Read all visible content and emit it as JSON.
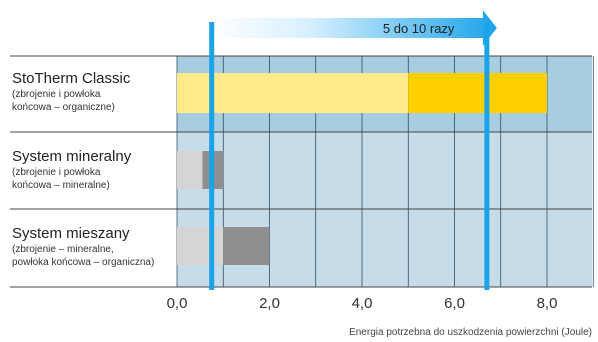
{
  "chart_data": {
    "type": "bar",
    "orientation": "horizontal",
    "xlabel": "Energia potrzebna do uszkodzenia powierzchni (Joule)",
    "xlim": [
      0,
      9
    ],
    "xticks": [
      "0,0",
      "2,0",
      "4,0",
      "6,0",
      "8,0"
    ],
    "grid": true,
    "categories": [
      {
        "title": "StoTherm Classic",
        "subtitle": [
          "(zbrojenie i powłoka",
          "końcowa – organiczne)"
        ]
      },
      {
        "title": "System mineralny",
        "subtitle": [
          "(zbrojenie i powłoka",
          "końcowa – mineralne)"
        ]
      },
      {
        "title": "System mieszany",
        "subtitle": [
          "(zbrojenie – mineralne,",
          "powłoka końcowa – organiczna)"
        ]
      }
    ],
    "ranges": [
      {
        "light": [
          0,
          5.0
        ],
        "dark": [
          5.0,
          8.0
        ],
        "light_color": "#ffeb8a",
        "dark_color": "#ffd000"
      },
      {
        "light": [
          0,
          0.55
        ],
        "dark": [
          0.55,
          1.0
        ],
        "light_color": "#d5d5d5",
        "dark_color": "#8f8f8f"
      },
      {
        "light": [
          0,
          1.0
        ],
        "dark": [
          1.0,
          2.0
        ],
        "light_color": "#d5d5d5",
        "dark_color": "#8f8f8f"
      }
    ],
    "markers": [
      0.75,
      6.7
    ],
    "annotation": {
      "text": "5 do 10 razy",
      "from": 0.75,
      "to": 6.7
    }
  },
  "colors": {
    "highlight_row": "#a9cde0",
    "row_bg": "#c6dde9",
    "grid": "#1f3a52",
    "marker": "#1aa3e8",
    "arrow_start": "#ffffff",
    "arrow_end": "#1aa3e8",
    "rule": "#444444"
  }
}
